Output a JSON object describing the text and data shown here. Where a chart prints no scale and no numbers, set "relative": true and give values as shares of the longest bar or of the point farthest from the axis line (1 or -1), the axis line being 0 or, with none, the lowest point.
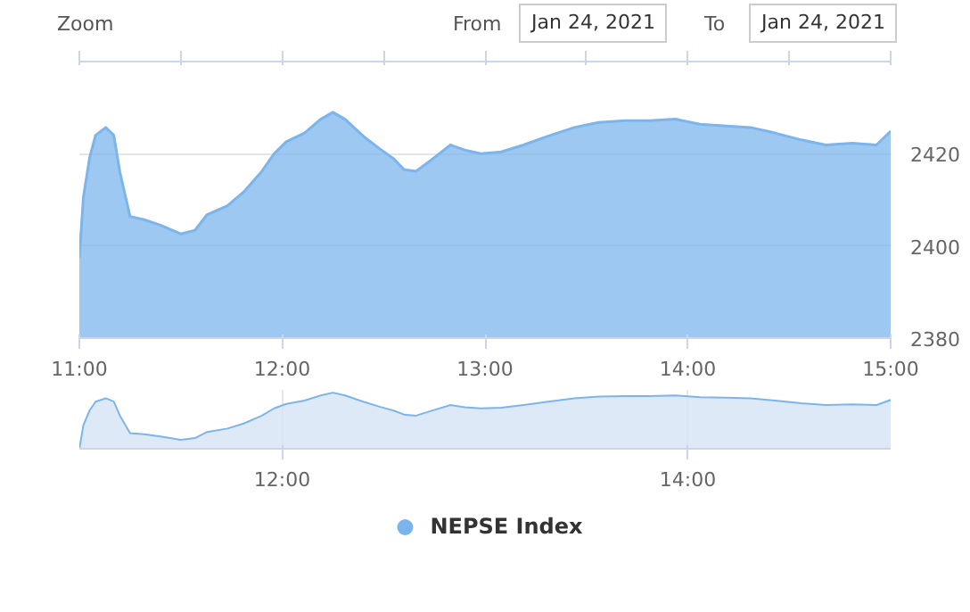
{
  "chart_data": [
    {
      "type": "area",
      "annotations": [
        "Zoom",
        "From",
        "Jan 24, 2021",
        "To",
        "Jan 24, 2021"
      ],
      "x": [
        11.0,
        11.02,
        11.05,
        11.08,
        11.13,
        11.17,
        11.2,
        11.25,
        11.32,
        11.4,
        11.5,
        11.57,
        11.63,
        11.73,
        11.81,
        11.9,
        11.96,
        12.02,
        12.11,
        12.19,
        12.25,
        12.31,
        12.4,
        12.48,
        12.55,
        12.6,
        12.66,
        12.73,
        12.83,
        12.9,
        12.98,
        13.08,
        13.19,
        13.31,
        13.44,
        13.56,
        13.69,
        13.81,
        13.94,
        14.06,
        14.19,
        14.31,
        14.43,
        14.56,
        14.68,
        14.81,
        14.93,
        15.0
      ],
      "series": [
        {
          "name": "NEPSE Index",
          "color": "#7cb5ec",
          "values": [
            2397.4,
            2410.6,
            2419,
            2424,
            2425.7,
            2424,
            2416,
            2406.4,
            2405.7,
            2404.5,
            2402.6,
            2403.4,
            2406.8,
            2408.7,
            2411.7,
            2416.2,
            2420,
            2422.6,
            2424.5,
            2427.5,
            2429,
            2427.5,
            2423.8,
            2421.1,
            2418.9,
            2416.6,
            2416.2,
            2418.5,
            2421.9,
            2420.8,
            2420,
            2420.4,
            2421.9,
            2423.8,
            2425.7,
            2426.8,
            2427.2,
            2427.2,
            2427.5,
            2426.4,
            2426,
            2425.7,
            2424.5,
            2423,
            2421.9,
            2422.3,
            2421.9,
            2424.9
          ]
        }
      ],
      "xlim": [
        11,
        15
      ],
      "xticks": [
        {
          "value": 11,
          "label": "11:00"
        },
        {
          "value": 12,
          "label": "12:00"
        },
        {
          "value": 13,
          "label": "13:00"
        },
        {
          "value": 14,
          "label": "14:00"
        },
        {
          "value": 15,
          "label": "15:00"
        }
      ],
      "ylim": [
        2380,
        2440
      ],
      "yticks": [
        2380,
        2400,
        2420
      ],
      "grid": "y",
      "legend": "bottom"
    },
    {
      "type": "line",
      "relative": true,
      "x": [
        11.0,
        11.02,
        11.05,
        11.08,
        11.13,
        11.17,
        11.2,
        11.25,
        11.32,
        11.4,
        11.5,
        11.57,
        11.63,
        11.73,
        11.81,
        11.9,
        11.96,
        12.02,
        12.11,
        12.19,
        12.25,
        12.31,
        12.4,
        12.48,
        12.55,
        12.6,
        12.66,
        12.73,
        12.83,
        12.9,
        12.98,
        13.08,
        13.19,
        13.31,
        13.44,
        13.56,
        13.69,
        13.81,
        13.94,
        14.06,
        14.19,
        14.31,
        14.43,
        14.56,
        14.68,
        14.81,
        14.93,
        15.0
      ],
      "series": [
        {
          "color": "#7cb5ec",
          "values": [
            0,
            0.42,
            0.68,
            0.84,
            0.9,
            0.84,
            0.59,
            0.28,
            0.26,
            0.22,
            0.16,
            0.19,
            0.3,
            0.36,
            0.45,
            0.59,
            0.72,
            0.8,
            0.86,
            0.95,
            1,
            0.95,
            0.84,
            0.75,
            0.68,
            0.61,
            0.59,
            0.67,
            0.78,
            0.74,
            0.72,
            0.73,
            0.78,
            0.84,
            0.9,
            0.93,
            0.94,
            0.94,
            0.95,
            0.92,
            0.91,
            0.9,
            0.86,
            0.81,
            0.78,
            0.79,
            0.78,
            0.87
          ]
        }
      ],
      "xlim": [
        11,
        15
      ],
      "xticks": [
        {
          "value": 12,
          "label": "12:00"
        },
        {
          "value": 14,
          "label": "14:00"
        }
      ],
      "grid": "x"
    }
  ]
}
